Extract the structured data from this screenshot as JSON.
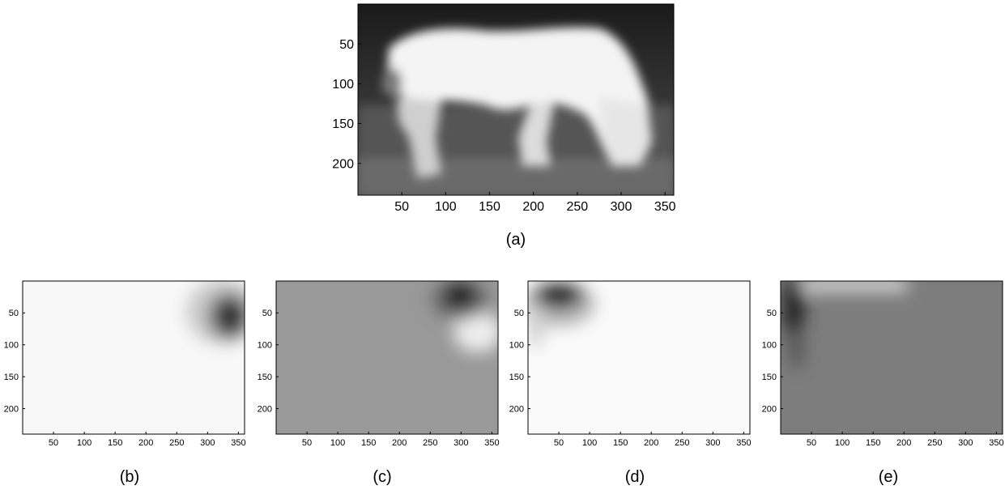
{
  "figure": {
    "panels": [
      {
        "caption": "(a)",
        "image_kind": "horse-segmentation-map",
        "x_ticks": [
          "50",
          "100",
          "150",
          "200",
          "250",
          "300",
          "350"
        ],
        "y_ticks": [
          "50",
          "100",
          "150",
          "200"
        ]
      },
      {
        "caption": "(b)",
        "image_kind": "weight-map",
        "x_ticks": [
          "50",
          "100",
          "150",
          "200",
          "250",
          "300",
          "350"
        ],
        "y_ticks": [
          "50",
          "100",
          "150",
          "200"
        ]
      },
      {
        "caption": "(c)",
        "image_kind": "weight-map",
        "x_ticks": [
          "50",
          "100",
          "150",
          "200",
          "250",
          "300",
          "350"
        ],
        "y_ticks": [
          "50",
          "100",
          "150",
          "200"
        ]
      },
      {
        "caption": "(d)",
        "image_kind": "weight-map",
        "x_ticks": [
          "50",
          "100",
          "150",
          "200",
          "250",
          "300",
          "350"
        ],
        "y_ticks": [
          "50",
          "100",
          "150",
          "200"
        ]
      },
      {
        "caption": "(e)",
        "image_kind": "weight-map",
        "x_ticks": [
          "50",
          "100",
          "150",
          "200",
          "250",
          "300",
          "350"
        ],
        "y_ticks": [
          "50",
          "100",
          "150",
          "200"
        ]
      }
    ]
  },
  "chart_data": [
    {
      "type": "heatmap",
      "title": "",
      "xlim": [
        0,
        360
      ],
      "ylim": [
        240,
        0
      ],
      "xticks": [
        50,
        100,
        150,
        200,
        250,
        300,
        350
      ],
      "yticks": [
        50,
        100,
        150,
        200
      ],
      "colormap": "gray"
    },
    {
      "type": "heatmap",
      "title": "",
      "xlim": [
        0,
        360
      ],
      "ylim": [
        240,
        0
      ],
      "xticks": [
        50,
        100,
        150,
        200,
        250,
        300,
        350
      ],
      "yticks": [
        50,
        100,
        150,
        200
      ],
      "colormap": "gray"
    },
    {
      "type": "heatmap",
      "title": "",
      "xlim": [
        0,
        360
      ],
      "ylim": [
        240,
        0
      ],
      "xticks": [
        50,
        100,
        150,
        200,
        250,
        300,
        350
      ],
      "yticks": [
        50,
        100,
        150,
        200
      ],
      "colormap": "gray"
    },
    {
      "type": "heatmap",
      "title": "",
      "xlim": [
        0,
        360
      ],
      "ylim": [
        240,
        0
      ],
      "xticks": [
        50,
        100,
        150,
        200,
        250,
        300,
        350
      ],
      "yticks": [
        50,
        100,
        150,
        200
      ],
      "colormap": "gray"
    },
    {
      "type": "heatmap",
      "title": "",
      "xlim": [
        0,
        360
      ],
      "ylim": [
        240,
        0
      ],
      "xticks": [
        50,
        100,
        150,
        200,
        250,
        300,
        350
      ],
      "yticks": [
        50,
        100,
        150,
        200
      ],
      "colormap": "gray"
    }
  ]
}
